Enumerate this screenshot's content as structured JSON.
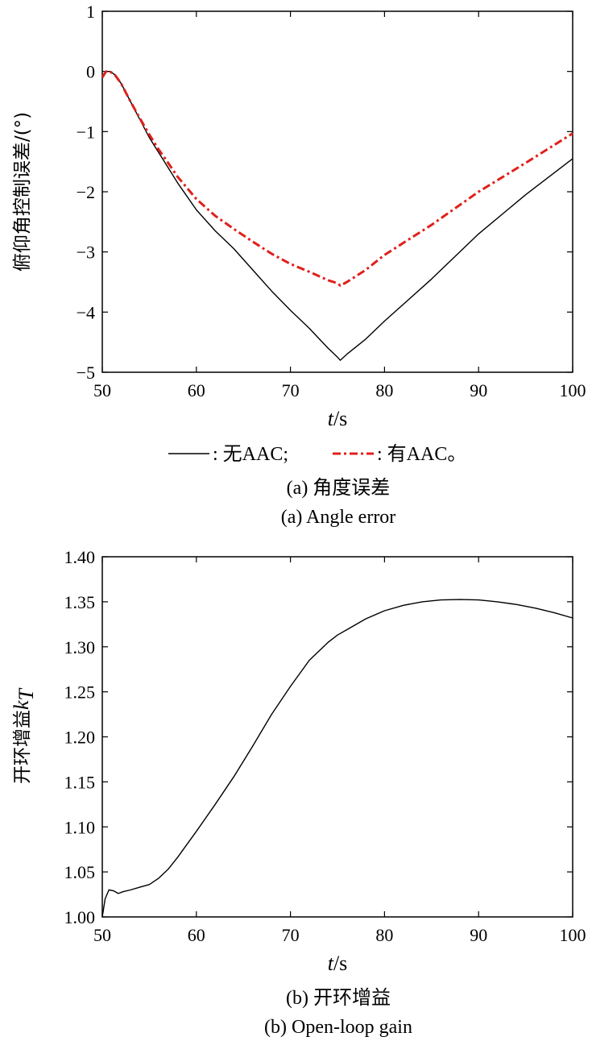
{
  "chart_data": [
    {
      "type": "line",
      "ylabel": "俯仰角控制误差/(°)",
      "xlabel_var": "t",
      "xlabel_unit": "/s",
      "xlim": [
        50,
        100
      ],
      "ylim": [
        -5,
        1
      ],
      "xticks": [
        "50",
        "60",
        "70",
        "80",
        "90",
        "100"
      ],
      "yticks": [
        "1",
        "0",
        "−1",
        "−2",
        "−3",
        "−4",
        "−5"
      ],
      "grid": false,
      "legend": [
        {
          "symbol": "solid",
          "label": ": 无AAC;"
        },
        {
          "symbol": "dashdot",
          "label": ": 有AAC。"
        }
      ],
      "caption_cn": "(a) 角度误差",
      "caption_en": "(a) Angle error",
      "series": [
        {
          "name": "无AAC",
          "color": "#000000",
          "style": "solid",
          "x": [
            50,
            50.4,
            50.8,
            51.3,
            52,
            53,
            54,
            55,
            56,
            57,
            58,
            60,
            62,
            64,
            66,
            68,
            70,
            72,
            74,
            75,
            75.3,
            76,
            78,
            80,
            85,
            90,
            95,
            100
          ],
          "y": [
            -0.1,
            0.0,
            0.0,
            -0.05,
            -0.2,
            -0.5,
            -0.8,
            -1.1,
            -1.35,
            -1.6,
            -1.85,
            -2.3,
            -2.65,
            -2.95,
            -3.3,
            -3.65,
            -3.97,
            -4.27,
            -4.6,
            -4.75,
            -4.8,
            -4.7,
            -4.45,
            -4.15,
            -3.45,
            -2.7,
            -2.05,
            -1.45
          ]
        },
        {
          "name": "有AAC",
          "color": "#e0201b",
          "style": "dashdot",
          "x": [
            50,
            50.4,
            50.8,
            51.3,
            52,
            53,
            54,
            55,
            56,
            57,
            58,
            60,
            62,
            64,
            66,
            68,
            70,
            72,
            74,
            75,
            75.3,
            76,
            78,
            80,
            85,
            90,
            95,
            100
          ],
          "y": [
            -0.1,
            0.0,
            0.0,
            -0.05,
            -0.2,
            -0.5,
            -0.78,
            -1.05,
            -1.3,
            -1.52,
            -1.75,
            -2.12,
            -2.4,
            -2.62,
            -2.83,
            -3.03,
            -3.2,
            -3.33,
            -3.47,
            -3.52,
            -3.56,
            -3.5,
            -3.3,
            -3.05,
            -2.55,
            -2.0,
            -1.52,
            -1.03
          ]
        }
      ]
    },
    {
      "type": "line",
      "ylabel": "开环增益",
      "ylabel_var": "k",
      "ylabel_sub": "T",
      "xlabel_var": "t",
      "xlabel_unit": "/s",
      "xlim": [
        50,
        100
      ],
      "ylim": [
        1.0,
        1.4
      ],
      "xticks": [
        "50",
        "60",
        "70",
        "80",
        "90",
        "100"
      ],
      "yticks": [
        "1.40",
        "1.35",
        "1.30",
        "1.25",
        "1.20",
        "1.15",
        "1.10",
        "1.05",
        "1.00"
      ],
      "grid": false,
      "caption_cn": "(b) 开环增益",
      "caption_en": "(b) Open-loop gain",
      "series": [
        {
          "color": "#000000",
          "style": "solid",
          "x": [
            50,
            50.3,
            50.7,
            51.2,
            51.7,
            52.2,
            53,
            54,
            55,
            56,
            57,
            58,
            60,
            62,
            64,
            66,
            68,
            70,
            72,
            74,
            75,
            76,
            78,
            80,
            82,
            84,
            86,
            88,
            90,
            92,
            94,
            96,
            98,
            100
          ],
          "y": [
            1.0,
            1.02,
            1.03,
            1.029,
            1.026,
            1.028,
            1.03,
            1.033,
            1.036,
            1.043,
            1.053,
            1.066,
            1.095,
            1.125,
            1.156,
            1.19,
            1.225,
            1.256,
            1.285,
            1.305,
            1.313,
            1.319,
            1.331,
            1.34,
            1.346,
            1.35,
            1.352,
            1.3525,
            1.352,
            1.35,
            1.347,
            1.343,
            1.338,
            1.332
          ]
        }
      ]
    }
  ]
}
